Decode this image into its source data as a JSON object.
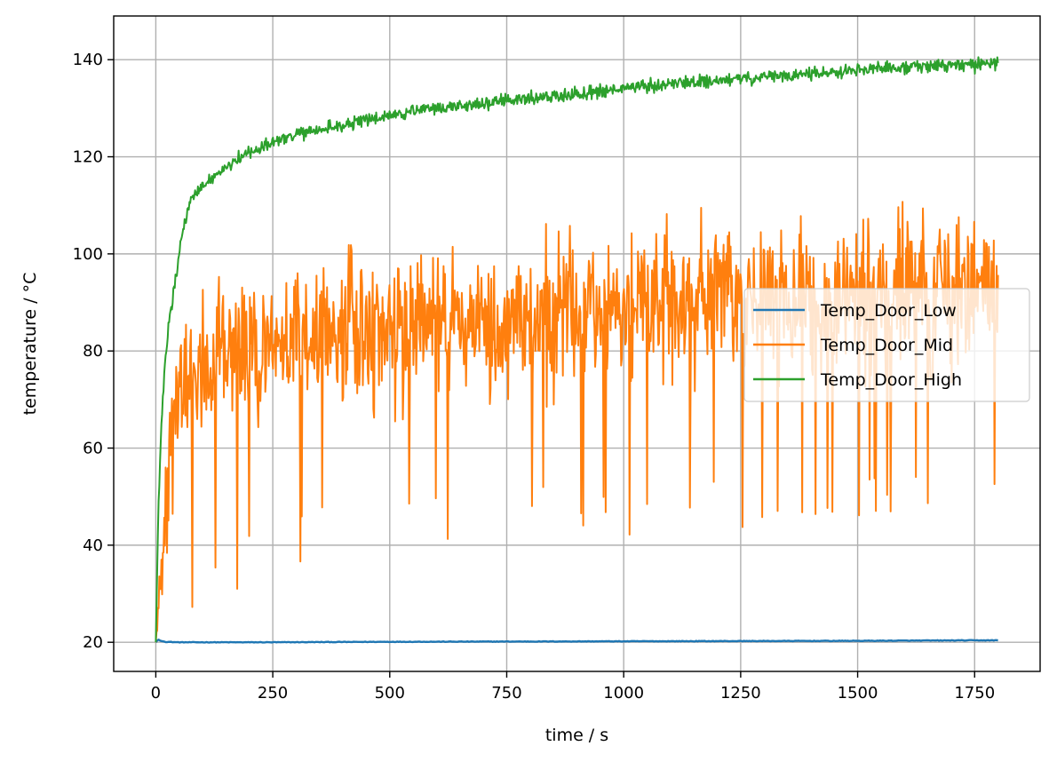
{
  "chart_data": {
    "type": "line",
    "xlabel": "time / s",
    "ylabel": "temperature / °C",
    "xlim": [
      -90,
      1890
    ],
    "ylim": [
      14,
      149
    ],
    "xticks": [
      0,
      250,
      500,
      750,
      1000,
      1250,
      1500,
      1750
    ],
    "yticks": [
      20,
      40,
      60,
      80,
      100,
      120,
      140
    ],
    "grid": true,
    "legend": {
      "position": "center-right"
    },
    "series": [
      {
        "name": "Temp_Door_Low",
        "color": "#1f77b4",
        "x": [
          0,
          5,
          10,
          20,
          50,
          100,
          250,
          500,
          750,
          1000,
          1250,
          1500,
          1750,
          1800
        ],
        "y": [
          20,
          20.6,
          20.3,
          20.1,
          20.0,
          20.0,
          20.0,
          20.1,
          20.15,
          20.2,
          20.25,
          20.3,
          20.4,
          20.4
        ]
      },
      {
        "name": "Temp_Door_Mid",
        "color": "#ff7f0e",
        "x": [
          0,
          10,
          20,
          30,
          50,
          75,
          100,
          150,
          200,
          250,
          300,
          400,
          500,
          600,
          750,
          900,
          1000,
          1100,
          1250,
          1400,
          1500,
          1600,
          1700,
          1800
        ],
        "y": [
          20,
          32,
          52,
          62,
          70,
          74,
          76,
          78,
          80,
          81,
          82,
          84,
          85,
          86,
          87,
          88,
          89,
          89.5,
          90,
          90.5,
          91,
          91.5,
          92,
          92
        ],
        "noise_band": [
          0,
          10,
          22,
          22,
          22,
          22,
          22,
          22,
          22,
          22,
          22,
          22,
          22,
          22,
          22,
          22,
          22,
          22,
          22,
          22,
          22,
          22,
          22,
          22
        ]
      },
      {
        "name": "Temp_Door_High",
        "color": "#2ca02c",
        "x": [
          0,
          5,
          10,
          15,
          20,
          30,
          40,
          50,
          60,
          75,
          100,
          150,
          200,
          250,
          300,
          400,
          500,
          600,
          750,
          900,
          1000,
          1100,
          1250,
          1400,
          1500,
          1600,
          1750,
          1800
        ],
        "y": [
          20,
          45,
          60,
          70,
          78,
          87,
          93,
          100,
          106,
          111,
          114,
          118,
          121,
          123,
          124.5,
          126.5,
          128.5,
          130,
          131.5,
          133,
          134,
          135,
          136,
          137,
          138,
          138.5,
          139,
          139.5
        ],
        "noise_band": [
          0,
          2,
          2,
          2,
          2,
          2,
          2,
          2,
          2,
          2,
          2,
          2,
          2,
          2,
          2,
          2,
          2,
          2,
          2,
          2,
          2,
          2,
          2,
          2,
          2,
          2,
          2,
          2
        ]
      }
    ]
  }
}
